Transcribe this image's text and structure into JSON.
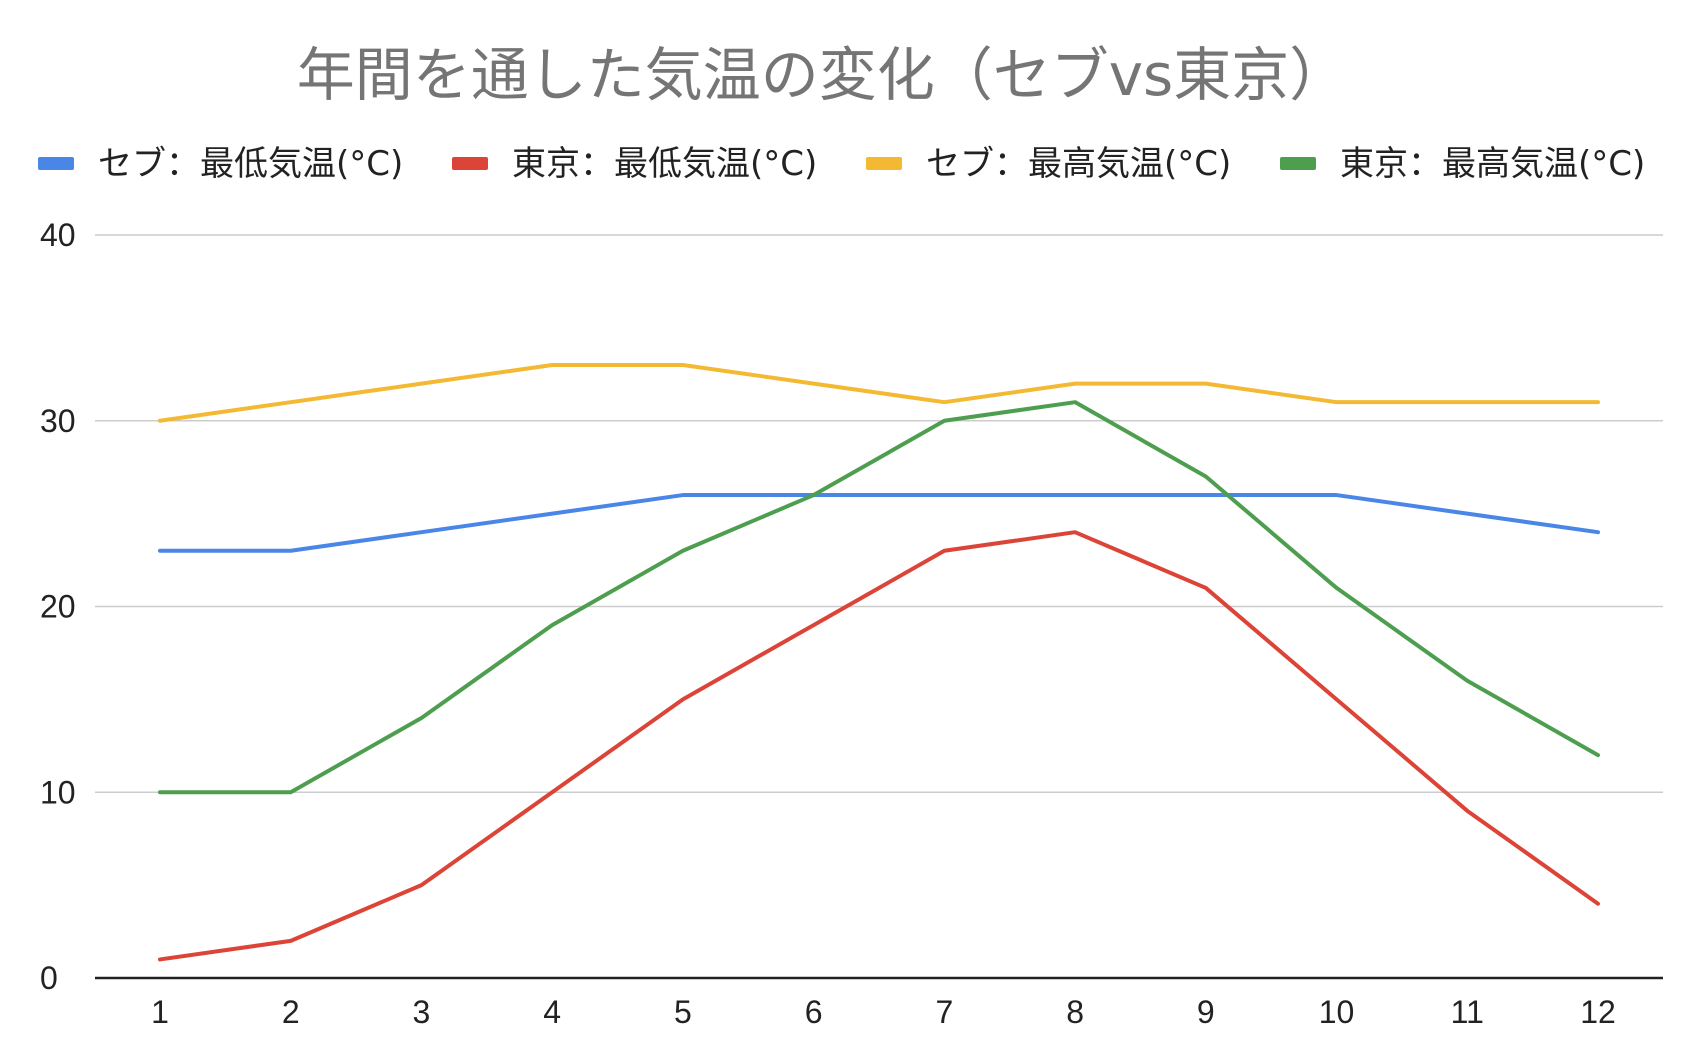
{
  "chart_data": {
    "type": "line",
    "title": "年間を通した気温の変化（セブvs東京）",
    "xlabel": "",
    "ylabel": "",
    "x": [
      "1",
      "2",
      "3",
      "4",
      "5",
      "6",
      "7",
      "8",
      "9",
      "10",
      "11",
      "12"
    ],
    "ylim": [
      0,
      40
    ],
    "yticks": [
      "0",
      "10",
      "20",
      "30",
      "40"
    ],
    "grid": true,
    "legend_position": "top",
    "series": [
      {
        "name": "セブ：最低気温(°C)",
        "color": "#4a86e8",
        "values": [
          23,
          23,
          24,
          25,
          26,
          26,
          26,
          26,
          26,
          26,
          25,
          24
        ]
      },
      {
        "name": "東京：最低気温(°C)",
        "color": "#db4437",
        "values": [
          1,
          2,
          5,
          10,
          15,
          19,
          23,
          24,
          21,
          15,
          9,
          4
        ]
      },
      {
        "name": "セブ：最高気温(°C)",
        "color": "#f4b932",
        "values": [
          30,
          31,
          32,
          33,
          33,
          32,
          31,
          32,
          32,
          31,
          31,
          31
        ]
      },
      {
        "name": "東京：最高気温(°C)",
        "color": "#4e9e4f",
        "values": [
          10,
          10,
          14,
          19,
          23,
          26,
          30,
          31,
          27,
          21,
          16,
          12
        ]
      }
    ]
  }
}
